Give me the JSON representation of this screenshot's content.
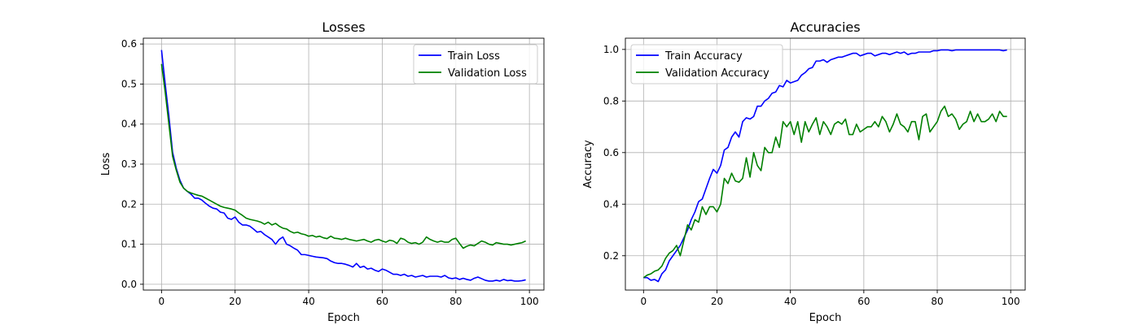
{
  "chart_data": [
    {
      "type": "line",
      "title": "Losses",
      "xlabel": "Epoch",
      "ylabel": "Loss",
      "xlim": [
        -4.95,
        103.95
      ],
      "ylim": [
        -0.0145,
        0.6145
      ],
      "xticks": [
        0,
        20,
        40,
        60,
        80,
        100
      ],
      "yticks": [
        0.0,
        0.1,
        0.2,
        0.3,
        0.4,
        0.5,
        0.6
      ],
      "xtick_labels": [
        "0",
        "20",
        "40",
        "60",
        "80",
        "100"
      ],
      "ytick_labels": [
        "0.0",
        "0.1",
        "0.2",
        "0.3",
        "0.4",
        "0.5",
        "0.6"
      ],
      "grid": true,
      "legend": "top-right",
      "series": [
        {
          "name": "Train Loss",
          "color": "#0000ff",
          "values": [
            0.585,
            0.5,
            0.42,
            0.33,
            0.29,
            0.26,
            0.24,
            0.232,
            0.225,
            0.215,
            0.215,
            0.21,
            0.202,
            0.195,
            0.19,
            0.188,
            0.18,
            0.178,
            0.165,
            0.162,
            0.168,
            0.155,
            0.148,
            0.148,
            0.145,
            0.138,
            0.13,
            0.132,
            0.124,
            0.118,
            0.112,
            0.1,
            0.112,
            0.118,
            0.1,
            0.096,
            0.09,
            0.085,
            0.074,
            0.074,
            0.072,
            0.07,
            0.068,
            0.067,
            0.066,
            0.064,
            0.058,
            0.054,
            0.052,
            0.052,
            0.05,
            0.047,
            0.043,
            0.052,
            0.042,
            0.045,
            0.038,
            0.04,
            0.035,
            0.032,
            0.038,
            0.035,
            0.03,
            0.025,
            0.025,
            0.022,
            0.025,
            0.02,
            0.022,
            0.018,
            0.02,
            0.022,
            0.018,
            0.02,
            0.02,
            0.02,
            0.018,
            0.022,
            0.016,
            0.014,
            0.016,
            0.012,
            0.015,
            0.012,
            0.01,
            0.015,
            0.018,
            0.014,
            0.01,
            0.008,
            0.008,
            0.01,
            0.008,
            0.012,
            0.009,
            0.01,
            0.008,
            0.008,
            0.009,
            0.011
          ]
        },
        {
          "name": "Validation Loss",
          "color": "#008000",
          "values": [
            0.55,
            0.48,
            0.4,
            0.32,
            0.285,
            0.255,
            0.24,
            0.232,
            0.228,
            0.225,
            0.222,
            0.22,
            0.215,
            0.21,
            0.205,
            0.2,
            0.195,
            0.192,
            0.19,
            0.188,
            0.185,
            0.178,
            0.172,
            0.165,
            0.162,
            0.16,
            0.158,
            0.155,
            0.15,
            0.155,
            0.148,
            0.152,
            0.145,
            0.14,
            0.138,
            0.132,
            0.128,
            0.13,
            0.126,
            0.124,
            0.12,
            0.122,
            0.118,
            0.12,
            0.116,
            0.114,
            0.12,
            0.115,
            0.114,
            0.112,
            0.115,
            0.112,
            0.11,
            0.108,
            0.11,
            0.112,
            0.108,
            0.105,
            0.11,
            0.112,
            0.108,
            0.105,
            0.11,
            0.108,
            0.102,
            0.115,
            0.112,
            0.105,
            0.102,
            0.104,
            0.1,
            0.105,
            0.118,
            0.112,
            0.108,
            0.105,
            0.108,
            0.105,
            0.105,
            0.112,
            0.115,
            0.102,
            0.09,
            0.095,
            0.098,
            0.096,
            0.102,
            0.108,
            0.105,
            0.1,
            0.098,
            0.104,
            0.102,
            0.1,
            0.1,
            0.098,
            0.1,
            0.102,
            0.104,
            0.108
          ]
        }
      ]
    },
    {
      "type": "line",
      "title": "Accuracies",
      "xlabel": "Epoch",
      "ylabel": "Accuracy",
      "xlim": [
        -4.95,
        103.95
      ],
      "ylim": [
        0.0669,
        1.0436
      ],
      "xticks": [
        0,
        20,
        40,
        60,
        80,
        100
      ],
      "yticks": [
        0.2,
        0.4,
        0.6,
        0.8,
        1.0
      ],
      "xtick_labels": [
        "0",
        "20",
        "40",
        "60",
        "80",
        "100"
      ],
      "ytick_labels": [
        "0.2",
        "0.4",
        "0.6",
        "0.8",
        "1.0"
      ],
      "grid": true,
      "legend": "top-left",
      "series": [
        {
          "name": "Train Accuracy",
          "color": "#0000ff",
          "values": [
            0.115,
            0.115,
            0.105,
            0.108,
            0.1,
            0.13,
            0.145,
            0.18,
            0.2,
            0.22,
            0.24,
            0.27,
            0.3,
            0.34,
            0.37,
            0.41,
            0.42,
            0.46,
            0.5,
            0.535,
            0.52,
            0.55,
            0.61,
            0.62,
            0.66,
            0.68,
            0.66,
            0.72,
            0.735,
            0.73,
            0.74,
            0.78,
            0.78,
            0.8,
            0.81,
            0.83,
            0.835,
            0.86,
            0.855,
            0.88,
            0.87,
            0.875,
            0.88,
            0.9,
            0.91,
            0.925,
            0.93,
            0.955,
            0.955,
            0.96,
            0.95,
            0.96,
            0.965,
            0.97,
            0.97,
            0.975,
            0.98,
            0.985,
            0.985,
            0.975,
            0.98,
            0.985,
            0.985,
            0.975,
            0.98,
            0.985,
            0.985,
            0.98,
            0.985,
            0.99,
            0.985,
            0.99,
            0.98,
            0.985,
            0.985,
            0.99,
            0.99,
            0.99,
            0.99,
            0.995,
            0.995,
            0.998,
            0.998,
            0.998,
            0.995,
            0.998,
            0.998,
            0.998,
            0.998,
            0.998,
            0.998,
            0.998,
            0.998,
            0.998,
            0.998,
            0.998,
            0.998,
            0.998,
            0.995,
            0.998
          ]
        },
        {
          "name": "Validation Accuracy",
          "color": "#008000",
          "values": [
            0.115,
            0.125,
            0.13,
            0.14,
            0.145,
            0.16,
            0.19,
            0.21,
            0.22,
            0.24,
            0.2,
            0.26,
            0.32,
            0.3,
            0.34,
            0.33,
            0.39,
            0.36,
            0.39,
            0.39,
            0.37,
            0.4,
            0.5,
            0.48,
            0.52,
            0.49,
            0.485,
            0.5,
            0.58,
            0.505,
            0.6,
            0.55,
            0.53,
            0.62,
            0.6,
            0.6,
            0.66,
            0.62,
            0.72,
            0.7,
            0.72,
            0.67,
            0.72,
            0.64,
            0.72,
            0.68,
            0.71,
            0.735,
            0.67,
            0.72,
            0.7,
            0.67,
            0.71,
            0.72,
            0.71,
            0.73,
            0.67,
            0.67,
            0.71,
            0.68,
            0.69,
            0.7,
            0.7,
            0.72,
            0.7,
            0.74,
            0.72,
            0.68,
            0.71,
            0.75,
            0.71,
            0.7,
            0.68,
            0.72,
            0.72,
            0.65,
            0.74,
            0.75,
            0.68,
            0.7,
            0.72,
            0.76,
            0.78,
            0.74,
            0.75,
            0.73,
            0.69,
            0.71,
            0.72,
            0.76,
            0.72,
            0.75,
            0.72,
            0.72,
            0.73,
            0.75,
            0.72,
            0.76,
            0.74,
            0.74
          ]
        }
      ]
    }
  ]
}
